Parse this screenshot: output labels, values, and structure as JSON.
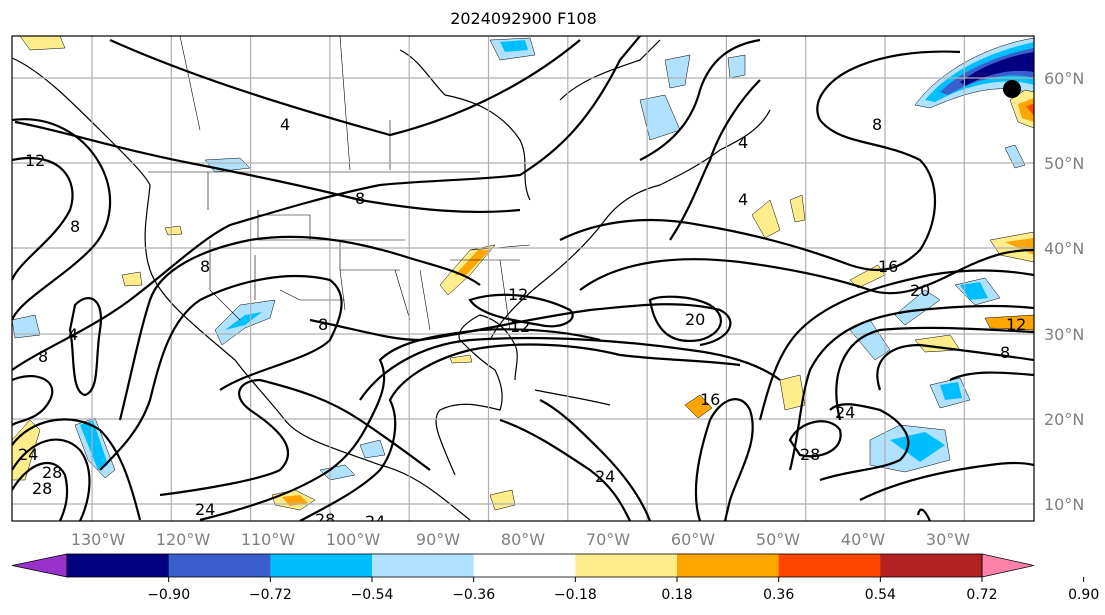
{
  "title": "2024092900 F108",
  "map": {
    "lon_labels": [
      "130°W",
      "120°W",
      "110°W",
      "100°W",
      "90°W",
      "80°W",
      "70°W",
      "60°W",
      "50°W",
      "40°W",
      "30°W"
    ],
    "lat_labels": [
      "60°N",
      "50°N",
      "40°N",
      "30°N",
      "20°N",
      "10°N"
    ],
    "contour_labels": [
      "12",
      "8",
      "4",
      "8",
      "8",
      "4",
      "8",
      "8",
      "12",
      "12",
      "20",
      "16",
      "20",
      "12",
      "8",
      "8",
      "16",
      "24",
      "28",
      "24",
      "28",
      "24",
      "28",
      "24",
      "28",
      "24",
      "4",
      "4"
    ],
    "colors": {
      "grid": "#b0b0b0",
      "contour": "#000000"
    }
  },
  "colorbar": {
    "ticks": [
      "−0.90",
      "−0.72",
      "−0.54",
      "−0.36",
      "−0.18",
      "0.18",
      "0.36",
      "0.54",
      "0.72",
      "0.90"
    ],
    "colors": [
      "#9932cc",
      "#000080",
      "#3a5fcd",
      "#00bfff",
      "#b0e2ff",
      "#ffffff",
      "#ffec8b",
      "#ffa500",
      "#ff4500",
      "#b22222",
      "#ff82ab"
    ]
  }
}
